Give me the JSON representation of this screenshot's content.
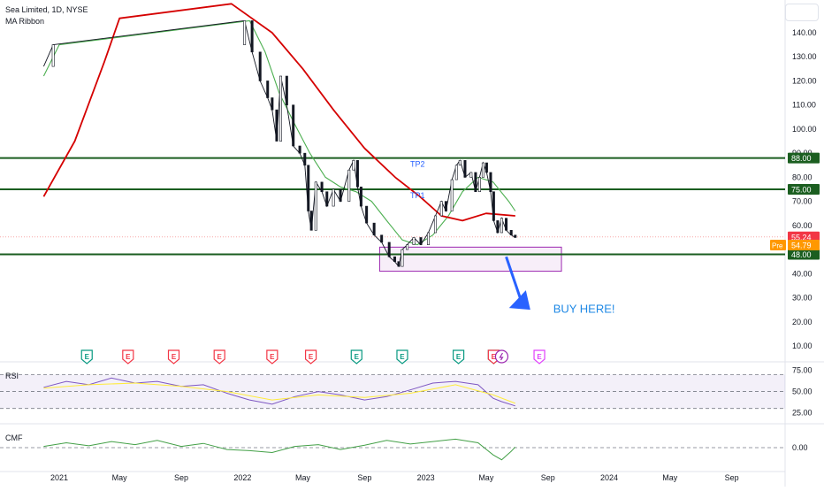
{
  "header": {
    "symbol_line": "Sea Limited, 1D, NYSE",
    "indicator_line": "MA Ribbon"
  },
  "chart_data": [
    {
      "type": "candlestick",
      "title": "Sea Limited, 1D, NYSE",
      "price_scale": {
        "ticks": [
          10,
          20,
          30,
          40,
          50,
          60,
          70,
          80,
          90,
          100,
          110,
          120,
          130,
          140
        ],
        "tick_labels": [
          "10.00",
          "20.00",
          "30.00",
          "40.00",
          "50.00",
          "60.00",
          "70.00",
          "80.00",
          "90.00",
          "100.00",
          "110.00",
          "120.00",
          "130.00",
          "140.00"
        ],
        "ylim": [
          0,
          150
        ]
      },
      "time_axis": {
        "labels": [
          "2021",
          "May",
          "Sep",
          "2022",
          "May",
          "Sep",
          "2023",
          "May",
          "Sep",
          "2024",
          "May",
          "Sep"
        ],
        "dates": [
          "2021-01-01",
          "2021-05-01",
          "2021-09-01",
          "2022-01-01",
          "2022-05-01",
          "2022-09-01",
          "2023-01-01",
          "2023-05-01",
          "2023-09-01",
          "2024-01-01",
          "2024-05-01",
          "2024-09-01"
        ]
      },
      "close_series": [
        {
          "date": "2020-12-01",
          "value": 126
        },
        {
          "date": "2020-12-20",
          "value": 135
        },
        {
          "date": "2022-01-05",
          "value": 145
        },
        {
          "date": "2022-01-20",
          "value": 132
        },
        {
          "date": "2022-02-05",
          "value": 120
        },
        {
          "date": "2022-02-20",
          "value": 113
        },
        {
          "date": "2022-03-01",
          "value": 108
        },
        {
          "date": "2022-03-10",
          "value": 95
        },
        {
          "date": "2022-03-18",
          "value": 122
        },
        {
          "date": "2022-03-30",
          "value": 110
        },
        {
          "date": "2022-04-12",
          "value": 93
        },
        {
          "date": "2022-04-25",
          "value": 90
        },
        {
          "date": "2022-05-05",
          "value": 85
        },
        {
          "date": "2022-05-12",
          "value": 66
        },
        {
          "date": "2022-05-18",
          "value": 58
        },
        {
          "date": "2022-05-27",
          "value": 78
        },
        {
          "date": "2022-06-08",
          "value": 74
        },
        {
          "date": "2022-06-18",
          "value": 68
        },
        {
          "date": "2022-07-01",
          "value": 75
        },
        {
          "date": "2022-07-15",
          "value": 70
        },
        {
          "date": "2022-08-01",
          "value": 83
        },
        {
          "date": "2022-08-10",
          "value": 87
        },
        {
          "date": "2022-08-18",
          "value": 76
        },
        {
          "date": "2022-08-25",
          "value": 68
        },
        {
          "date": "2022-09-05",
          "value": 61
        },
        {
          "date": "2022-09-20",
          "value": 56
        },
        {
          "date": "2022-10-05",
          "value": 53
        },
        {
          "date": "2022-10-20",
          "value": 47
        },
        {
          "date": "2022-10-31",
          "value": 45
        },
        {
          "date": "2022-11-08",
          "value": 43
        },
        {
          "date": "2022-11-15",
          "value": 50
        },
        {
          "date": "2022-11-25",
          "value": 52
        },
        {
          "date": "2022-12-08",
          "value": 55
        },
        {
          "date": "2022-12-22",
          "value": 52
        },
        {
          "date": "2023-01-06",
          "value": 57
        },
        {
          "date": "2023-01-20",
          "value": 64
        },
        {
          "date": "2023-02-01",
          "value": 70
        },
        {
          "date": "2023-02-10",
          "value": 66
        },
        {
          "date": "2023-02-22",
          "value": 79
        },
        {
          "date": "2023-03-03",
          "value": 85
        },
        {
          "date": "2023-03-10",
          "value": 87
        },
        {
          "date": "2023-03-20",
          "value": 80
        },
        {
          "date": "2023-04-01",
          "value": 82
        },
        {
          "date": "2023-04-10",
          "value": 74
        },
        {
          "date": "2023-04-18",
          "value": 80
        },
        {
          "date": "2023-04-25",
          "value": 86
        },
        {
          "date": "2023-05-02",
          "value": 82
        },
        {
          "date": "2023-05-10",
          "value": 74
        },
        {
          "date": "2023-05-16",
          "value": 62
        },
        {
          "date": "2023-05-24",
          "value": 57
        },
        {
          "date": "2023-06-01",
          "value": 63
        },
        {
          "date": "2023-06-10",
          "value": 58
        },
        {
          "date": "2023-06-20",
          "value": 56
        },
        {
          "date": "2023-06-28",
          "value": 55
        }
      ],
      "ma_ribbon": [
        {
          "name": "",
          "color": "#4caf50",
          "values": [
            {
              "date": "2020-12-01",
              "value": 122
            },
            {
              "date": "2021-01-01",
              "value": 135
            },
            {
              "date": "2022-01-15",
              "value": 145
            },
            {
              "date": "2022-02-15",
              "value": 132
            },
            {
              "date": "2022-03-15",
              "value": 115
            },
            {
              "date": "2022-04-15",
              "value": 102
            },
            {
              "date": "2022-05-15",
              "value": 90
            },
            {
              "date": "2022-06-15",
              "value": 80
            },
            {
              "date": "2022-07-15",
              "value": 76
            },
            {
              "date": "2022-08-15",
              "value": 74
            },
            {
              "date": "2022-09-15",
              "value": 70
            },
            {
              "date": "2022-10-15",
              "value": 62
            },
            {
              "date": "2022-11-15",
              "value": 54
            },
            {
              "date": "2022-12-15",
              "value": 52
            },
            {
              "date": "2023-01-15",
              "value": 56
            },
            {
              "date": "2023-02-15",
              "value": 64
            },
            {
              "date": "2023-03-15",
              "value": 74
            },
            {
              "date": "2023-04-15",
              "value": 80
            },
            {
              "date": "2023-05-15",
              "value": 78
            },
            {
              "date": "2023-06-15",
              "value": 70
            },
            {
              "date": "2023-06-28",
              "value": 66
            }
          ]
        },
        {
          "name": "",
          "color": "#d50000",
          "values": [
            {
              "date": "2020-12-01",
              "value": 72
            },
            {
              "date": "2021-02-01",
              "value": 95
            },
            {
              "date": "2021-04-01",
              "value": 128
            },
            {
              "date": "2021-05-01",
              "value": 146
            },
            {
              "date": "2021-12-10",
              "value": 152
            },
            {
              "date": "2022-03-01",
              "value": 140
            },
            {
              "date": "2022-05-01",
              "value": 125
            },
            {
              "date": "2022-07-01",
              "value": 108
            },
            {
              "date": "2022-09-01",
              "value": 92
            },
            {
              "date": "2022-11-01",
              "value": 80
            },
            {
              "date": "2022-12-20",
              "value": 72
            },
            {
              "date": "2023-02-01",
              "value": 64
            },
            {
              "date": "2023-03-15",
              "value": 62
            },
            {
              "date": "2023-05-01",
              "value": 65
            },
            {
              "date": "2023-06-28",
              "value": 64
            }
          ]
        }
      ],
      "horizontal_levels": [
        {
          "value": 88,
          "label": "88.00"
        },
        {
          "value": 75,
          "label": "75.00"
        },
        {
          "value": 48,
          "label": "48.00"
        }
      ],
      "last_price": {
        "value": 55.24,
        "label": "55.24",
        "color": "#f23645"
      },
      "premarket_price": {
        "tag": "Pre",
        "value": 54.79,
        "label": "54.79",
        "color": "#ff9800"
      },
      "annotations": [
        {
          "text": "TP2",
          "date": "2022-12-01",
          "value": 88
        },
        {
          "text": "TP1",
          "date": "2022-12-01",
          "value": 75
        },
        {
          "text": "BUY HERE!",
          "date": "2023-09-01",
          "value": 26
        }
      ],
      "buy_zone": {
        "date_from": "2022-10-01",
        "date_to": "2023-09-28",
        "value_from": 41,
        "value_to": 51,
        "color": "#9c27b0"
      },
      "arrow": {
        "from": {
          "date": "2023-06-10",
          "value": 47
        },
        "to": {
          "date": "2023-07-28",
          "value": 25
        },
        "color": "#2962ff"
      },
      "event_markers": [
        {
          "type": "earnings",
          "label": "E",
          "date": "2021-02-25",
          "color": "#089981"
        },
        {
          "type": "earnings",
          "label": "E",
          "date": "2021-05-18",
          "color": "#f23645"
        },
        {
          "type": "earnings",
          "label": "E",
          "date": "2021-08-17",
          "color": "#f23645"
        },
        {
          "type": "earnings",
          "label": "E",
          "date": "2021-11-16",
          "color": "#f23645"
        },
        {
          "type": "earnings",
          "label": "E",
          "date": "2022-03-01",
          "color": "#f23645"
        },
        {
          "type": "earnings",
          "label": "E",
          "date": "2022-05-17",
          "color": "#f23645"
        },
        {
          "type": "earnings",
          "label": "E",
          "date": "2022-08-16",
          "color": "#089981"
        },
        {
          "type": "earnings",
          "label": "E",
          "date": "2022-11-15",
          "color": "#089981"
        },
        {
          "type": "earnings",
          "label": "E",
          "date": "2023-03-07",
          "color": "#089981"
        },
        {
          "type": "earnings",
          "label": "E",
          "date": "2023-05-16",
          "color": "#089981"
        },
        {
          "type": "earnings",
          "label": "E",
          "date": "2023-05-16",
          "color": "#f23645"
        },
        {
          "type": "flash",
          "label": "",
          "date": "2023-06-01",
          "color": "#9c27b0"
        },
        {
          "type": "earnings",
          "label": "E",
          "date": "2023-08-15",
          "color": "#e040fb"
        }
      ]
    },
    {
      "type": "line",
      "title": "RSI",
      "ticks": [
        25,
        50,
        75
      ],
      "tick_labels": [
        "25.00",
        "50.00",
        "75.00"
      ],
      "ylim": [
        15,
        82
      ],
      "band": [
        30,
        70
      ],
      "mid": 50,
      "series": [
        {
          "name": "",
          "color": "#7e57c2",
          "values": [
            {
              "date": "2020-12-01",
              "value": 55
            },
            {
              "date": "2021-01-15",
              "value": 62
            },
            {
              "date": "2021-03-01",
              "value": 58
            },
            {
              "date": "2021-04-15",
              "value": 66
            },
            {
              "date": "2021-06-01",
              "value": 60
            },
            {
              "date": "2021-07-15",
              "value": 62
            },
            {
              "date": "2021-09-01",
              "value": 56
            },
            {
              "date": "2021-10-15",
              "value": 58
            },
            {
              "date": "2021-12-01",
              "value": 48
            },
            {
              "date": "2022-01-15",
              "value": 40
            },
            {
              "date": "2022-03-01",
              "value": 35
            },
            {
              "date": "2022-04-15",
              "value": 44
            },
            {
              "date": "2022-06-01",
              "value": 50
            },
            {
              "date": "2022-07-15",
              "value": 46
            },
            {
              "date": "2022-09-01",
              "value": 40
            },
            {
              "date": "2022-10-15",
              "value": 44
            },
            {
              "date": "2022-12-01",
              "value": 52
            },
            {
              "date": "2023-01-15",
              "value": 60
            },
            {
              "date": "2023-03-01",
              "value": 62
            },
            {
              "date": "2023-04-15",
              "value": 58
            },
            {
              "date": "2023-05-15",
              "value": 42
            },
            {
              "date": "2023-06-01",
              "value": 38
            },
            {
              "date": "2023-06-28",
              "value": 33
            }
          ]
        },
        {
          "name": "",
          "color": "#ffeb3b",
          "values": [
            {
              "date": "2020-12-01",
              "value": 54
            },
            {
              "date": "2021-03-01",
              "value": 58
            },
            {
              "date": "2021-06-01",
              "value": 60
            },
            {
              "date": "2021-09-01",
              "value": 56
            },
            {
              "date": "2021-12-01",
              "value": 50
            },
            {
              "date": "2022-03-01",
              "value": 40
            },
            {
              "date": "2022-06-01",
              "value": 46
            },
            {
              "date": "2022-09-01",
              "value": 43
            },
            {
              "date": "2022-12-01",
              "value": 48
            },
            {
              "date": "2023-03-01",
              "value": 58
            },
            {
              "date": "2023-05-15",
              "value": 46
            },
            {
              "date": "2023-06-28",
              "value": 36
            }
          ]
        }
      ]
    },
    {
      "type": "line",
      "title": "CMF",
      "ticks": [
        0
      ],
      "tick_labels": [
        "0.00"
      ],
      "ylim": [
        -0.35,
        0.35
      ],
      "zero_line": 0,
      "series": [
        {
          "name": "",
          "color": "#43a047",
          "values": [
            {
              "date": "2020-12-01",
              "value": 0.02
            },
            {
              "date": "2021-01-15",
              "value": 0.08
            },
            {
              "date": "2021-03-01",
              "value": 0.03
            },
            {
              "date": "2021-04-15",
              "value": 0.1
            },
            {
              "date": "2021-06-01",
              "value": 0.05
            },
            {
              "date": "2021-07-15",
              "value": 0.12
            },
            {
              "date": "2021-09-01",
              "value": 0.02
            },
            {
              "date": "2021-10-15",
              "value": 0.07
            },
            {
              "date": "2021-12-01",
              "value": -0.03
            },
            {
              "date": "2022-01-15",
              "value": -0.05
            },
            {
              "date": "2022-03-01",
              "value": -0.08
            },
            {
              "date": "2022-04-15",
              "value": 0.02
            },
            {
              "date": "2022-06-01",
              "value": 0.05
            },
            {
              "date": "2022-07-15",
              "value": -0.03
            },
            {
              "date": "2022-09-01",
              "value": 0.04
            },
            {
              "date": "2022-10-15",
              "value": 0.12
            },
            {
              "date": "2022-12-01",
              "value": 0.06
            },
            {
              "date": "2023-01-15",
              "value": 0.1
            },
            {
              "date": "2023-03-01",
              "value": 0.14
            },
            {
              "date": "2023-04-15",
              "value": 0.08
            },
            {
              "date": "2023-05-15",
              "value": -0.12
            },
            {
              "date": "2023-06-01",
              "value": -0.2
            },
            {
              "date": "2023-06-20",
              "value": -0.06
            },
            {
              "date": "2023-06-28",
              "value": 0.01
            }
          ]
        }
      ]
    }
  ],
  "indicator_labels": {
    "rsi": "RSI",
    "cmf": "CMF"
  }
}
